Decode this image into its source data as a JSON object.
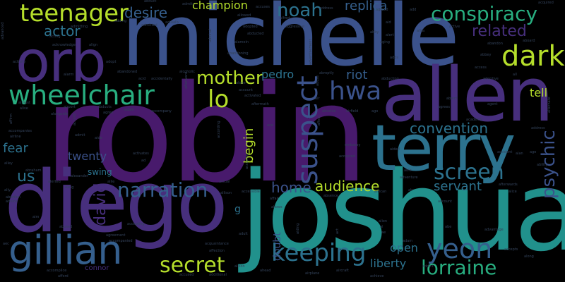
{
  "palette": {
    "background": "#000000",
    "purple": "#481a6c",
    "indigo": "#472f7d",
    "blue": "#3b528b",
    "steel": "#355f8d",
    "teal": "#2c728e",
    "sea": "#21918c",
    "green": "#28ae80",
    "lime": "#5ec962",
    "yellow": "#b5de2b",
    "dim": "#33425a"
  },
  "words": [
    {
      "text": "robin",
      "color": "#481a6c"
    },
    {
      "text": "joshua",
      "color": "#21918c"
    },
    {
      "text": "michelle",
      "color": "#3b528b"
    },
    {
      "text": "diego",
      "color": "#472f7d"
    },
    {
      "text": "allen",
      "color": "#472f7d"
    },
    {
      "text": "terry",
      "color": "#2c728e"
    },
    {
      "text": "orb",
      "color": "#472f7d"
    },
    {
      "text": "gillian",
      "color": "#355f8d"
    },
    {
      "text": "wheelchair",
      "color": "#28ae80"
    },
    {
      "text": "teenager",
      "color": "#b5de2b"
    },
    {
      "text": "conspiracy",
      "color": "#28ae80"
    },
    {
      "text": "dark",
      "color": "#b5de2b"
    },
    {
      "text": "yeon",
      "color": "#355f8d"
    },
    {
      "text": "lorraine",
      "color": "#28ae80"
    },
    {
      "text": "keeping",
      "color": "#2c728e"
    },
    {
      "text": "screen",
      "color": "#2c728e"
    },
    {
      "text": "narration",
      "color": "#355f8d"
    },
    {
      "text": "secret",
      "color": "#b5de2b"
    },
    {
      "text": "psychic",
      "color": "#3b528b"
    },
    {
      "text": "suspect",
      "color": "#3b528b"
    },
    {
      "text": "hwa",
      "color": "#3b528b"
    },
    {
      "text": "lo",
      "color": "#b5de2b"
    },
    {
      "text": "mother",
      "color": "#b5de2b"
    },
    {
      "text": "noah",
      "color": "#2c728e"
    },
    {
      "text": "related",
      "color": "#472f7d"
    },
    {
      "text": "convention",
      "color": "#2c728e"
    },
    {
      "text": "david",
      "color": "#472f7d"
    },
    {
      "text": "servant",
      "color": "#2c728e"
    },
    {
      "text": "home",
      "color": "#3b528b"
    },
    {
      "text": "audience",
      "color": "#b5de2b"
    },
    {
      "text": "liberty",
      "color": "#2c728e"
    },
    {
      "text": "open",
      "color": "#2c728e"
    },
    {
      "text": "replica",
      "color": "#355f8d"
    },
    {
      "text": "actor",
      "color": "#2c728e"
    },
    {
      "text": "desire",
      "color": "#355f8d"
    },
    {
      "text": "champion",
      "color": "#b5de2b"
    },
    {
      "text": "pedro",
      "color": "#2c728e"
    },
    {
      "text": "riot",
      "color": "#355f8d"
    },
    {
      "text": "fear",
      "color": "#2c728e"
    },
    {
      "text": "twenty",
      "color": "#3b528b"
    },
    {
      "text": "us",
      "color": "#2c728e"
    },
    {
      "text": "begin",
      "color": "#b5de2b"
    },
    {
      "text": "tell",
      "color": "#b5de2b"
    },
    {
      "text": "swing",
      "color": "#2c728e"
    },
    {
      "text": "doubt",
      "color": "#3b528b"
    },
    {
      "text": "connor",
      "color": "#472f7d"
    },
    {
      "text": "g",
      "color": "#2c728e"
    },
    {
      "text": "abduct",
      "color": "#33425a"
    },
    {
      "text": "actually",
      "color": "#33425a"
    },
    {
      "text": "admits",
      "color": "#33425a"
    },
    {
      "text": "accuses",
      "color": "#33425a"
    },
    {
      "text": "allowed",
      "color": "#33425a"
    },
    {
      "text": "alfred",
      "color": "#33425a"
    },
    {
      "text": "address",
      "color": "#33425a"
    },
    {
      "text": "agreed",
      "color": "#33425a"
    },
    {
      "text": "add",
      "color": "#33425a"
    },
    {
      "text": "acquired",
      "color": "#33425a"
    },
    {
      "text": "advanced",
      "color": "#33425a"
    },
    {
      "text": "acting",
      "color": "#33425a"
    },
    {
      "text": "adding",
      "color": "#33425a"
    },
    {
      "text": "admitted",
      "color": "#33425a"
    },
    {
      "text": "adopted",
      "color": "#33425a"
    },
    {
      "text": "abducted",
      "color": "#33425a"
    },
    {
      "text": "aggressive",
      "color": "#33425a"
    },
    {
      "text": "aid",
      "color": "#33425a"
    },
    {
      "text": "alert",
      "color": "#33425a"
    },
    {
      "text": "alias",
      "color": "#33425a"
    },
    {
      "text": "aboard",
      "color": "#33425a"
    },
    {
      "text": "admitting",
      "color": "#33425a"
    },
    {
      "text": "acknowledge",
      "color": "#33425a"
    },
    {
      "text": "align",
      "color": "#33425a"
    },
    {
      "text": "activity",
      "color": "#33425a"
    },
    {
      "text": "admiral",
      "color": "#33425a"
    },
    {
      "text": "alamein",
      "color": "#33425a"
    },
    {
      "text": "abby",
      "color": "#33425a"
    },
    {
      "text": "aging",
      "color": "#33425a"
    },
    {
      "text": "abandon",
      "color": "#33425a"
    },
    {
      "text": "abandoning",
      "color": "#33425a"
    },
    {
      "text": "adopt",
      "color": "#33425a"
    },
    {
      "text": "alarm",
      "color": "#33425a"
    },
    {
      "text": "abandoned",
      "color": "#33425a"
    },
    {
      "text": "alcoholic",
      "color": "#33425a"
    },
    {
      "text": "abroptly",
      "color": "#33425a"
    },
    {
      "text": "abduction",
      "color": "#33425a"
    },
    {
      "text": "adds",
      "color": "#33425a"
    },
    {
      "text": "abbey",
      "color": "#33425a"
    },
    {
      "text": "access",
      "color": "#33425a"
    },
    {
      "text": "all",
      "color": "#33425a"
    },
    {
      "text": "adoptive",
      "color": "#33425a"
    },
    {
      "text": "accidentally",
      "color": "#33425a"
    },
    {
      "text": "acid",
      "color": "#33425a"
    },
    {
      "text": "alone",
      "color": "#33425a"
    },
    {
      "text": "account",
      "color": "#33425a"
    },
    {
      "text": "activated",
      "color": "#33425a"
    },
    {
      "text": "abuse",
      "color": "#33425a"
    },
    {
      "text": "air",
      "color": "#33425a"
    },
    {
      "text": "almost",
      "color": "#33425a"
    },
    {
      "text": "afterward",
      "color": "#33425a"
    },
    {
      "text": "airport",
      "color": "#33425a"
    },
    {
      "text": "abducts",
      "color": "#33425a"
    },
    {
      "text": "agree",
      "color": "#33425a"
    },
    {
      "text": "adam",
      "color": "#33425a"
    },
    {
      "text": "aftermath",
      "color": "#33425a"
    },
    {
      "text": "abusive",
      "color": "#33425a"
    },
    {
      "text": "airfield",
      "color": "#33425a"
    },
    {
      "text": "ago",
      "color": "#33425a"
    },
    {
      "text": "agrees",
      "color": "#33425a"
    },
    {
      "text": "alive",
      "color": "#33425a"
    },
    {
      "text": "alongside",
      "color": "#33425a"
    },
    {
      "text": "accompany",
      "color": "#33425a"
    },
    {
      "text": "academy",
      "color": "#33425a"
    },
    {
      "text": "accompanies",
      "color": "#33425a"
    },
    {
      "text": "airline",
      "color": "#33425a"
    },
    {
      "text": "admit",
      "color": "#33425a"
    },
    {
      "text": "aide",
      "color": "#33425a"
    },
    {
      "text": "ace",
      "color": "#33425a"
    },
    {
      "text": "affect",
      "color": "#33425a"
    },
    {
      "text": "address",
      "color": "#33425a"
    },
    {
      "text": "according",
      "color": "#33425a"
    },
    {
      "text": "accusing",
      "color": "#33425a"
    },
    {
      "text": "embassy",
      "color": "#33425a"
    },
    {
      "text": "aided",
      "color": "#33425a"
    },
    {
      "text": "accident",
      "color": "#33425a"
    },
    {
      "text": "alan",
      "color": "#33425a"
    },
    {
      "text": "age",
      "color": "#33425a"
    },
    {
      "text": "ability",
      "color": "#33425a"
    },
    {
      "text": "alley",
      "color": "#33425a"
    },
    {
      "text": "activates",
      "color": "#33425a"
    },
    {
      "text": "ad",
      "color": "#33425a"
    },
    {
      "text": "accepted",
      "color": "#33425a"
    },
    {
      "text": "able",
      "color": "#33425a"
    },
    {
      "text": "abraham",
      "color": "#33425a"
    },
    {
      "text": "alexander",
      "color": "#33425a"
    },
    {
      "text": "alerted",
      "color": "#33425a"
    },
    {
      "text": "allie",
      "color": "#33425a"
    },
    {
      "text": "actual",
      "color": "#33425a"
    },
    {
      "text": "african",
      "color": "#33425a"
    },
    {
      "text": "adventure",
      "color": "#33425a"
    },
    {
      "text": "afterwards",
      "color": "#33425a"
    },
    {
      "text": "alice",
      "color": "#33425a"
    },
    {
      "text": "ally",
      "color": "#33425a"
    },
    {
      "text": "aang",
      "color": "#33425a"
    },
    {
      "text": "accessible",
      "color": "#33425a"
    },
    {
      "text": "affair",
      "color": "#33425a"
    },
    {
      "text": "abortion",
      "color": "#33425a"
    },
    {
      "text": "advice",
      "color": "#33425a"
    },
    {
      "text": "allison",
      "color": "#33425a"
    },
    {
      "text": "absence",
      "color": "#33425a"
    },
    {
      "text": "allows",
      "color": "#33425a"
    },
    {
      "text": "aim",
      "color": "#33425a"
    },
    {
      "text": "abused",
      "color": "#33425a"
    },
    {
      "text": "accepting",
      "color": "#33425a"
    },
    {
      "text": "agreement",
      "color": "#33425a"
    },
    {
      "text": "advantage",
      "color": "#33425a"
    },
    {
      "text": "adult",
      "color": "#33425a"
    },
    {
      "text": "act",
      "color": "#33425a"
    },
    {
      "text": "alien",
      "color": "#33425a"
    },
    {
      "text": "aec",
      "color": "#33425a"
    },
    {
      "text": "acquaintance",
      "color": "#33425a"
    },
    {
      "text": "accompanied",
      "color": "#33425a"
    },
    {
      "text": "affection",
      "color": "#33425a"
    },
    {
      "text": "accepts",
      "color": "#33425a"
    },
    {
      "text": "along",
      "color": "#33425a"
    },
    {
      "text": "alison",
      "color": "#33425a"
    },
    {
      "text": "adam",
      "color": "#33425a"
    },
    {
      "text": "addict",
      "color": "#33425a"
    },
    {
      "text": "accomplice",
      "color": "#33425a"
    },
    {
      "text": "afford",
      "color": "#33425a"
    },
    {
      "text": "accused",
      "color": "#33425a"
    },
    {
      "text": "additional",
      "color": "#33425a"
    },
    {
      "text": "ahead",
      "color": "#33425a"
    },
    {
      "text": "airplane",
      "color": "#33425a"
    },
    {
      "text": "aircraft",
      "color": "#33425a"
    },
    {
      "text": "achieve",
      "color": "#33425a"
    },
    {
      "text": "active",
      "color": "#33425a"
    },
    {
      "text": "agent",
      "color": "#33425a"
    },
    {
      "text": "abject",
      "color": "#33425a"
    },
    {
      "text": "alternate",
      "color": "#33425a"
    },
    {
      "text": "ah",
      "color": "#33425a"
    },
    {
      "text": "al",
      "color": "#33425a"
    },
    {
      "text": "ae",
      "color": "#33425a"
    },
    {
      "text": "advertisement",
      "color": "#33425a"
    },
    {
      "text": "affirm",
      "color": "#33425a"
    },
    {
      "text": "accord",
      "color": "#33425a"
    },
    {
      "text": "aiding",
      "color": "#33425a"
    },
    {
      "text": "abe",
      "color": "#33425a"
    },
    {
      "text": "account",
      "color": "#33425a"
    }
  ]
}
